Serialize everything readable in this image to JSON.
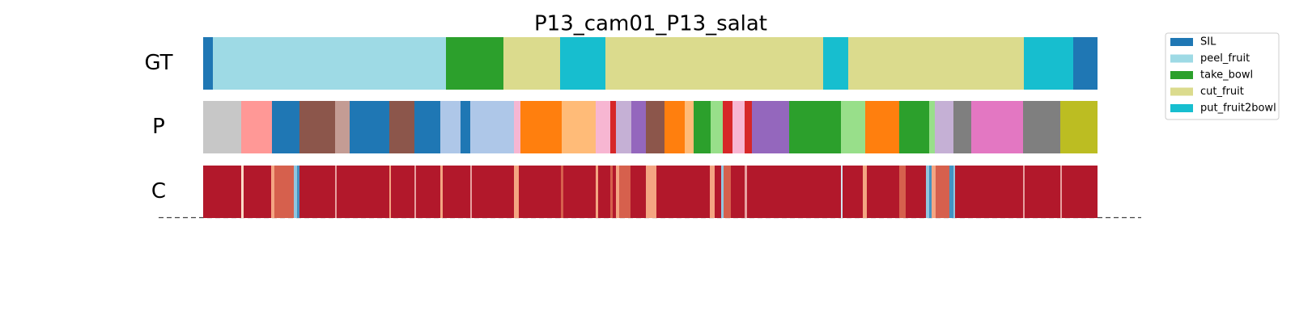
{
  "chart_data": {
    "type": "segments",
    "title": "P13_cam01_P13_salat",
    "xlim": [
      0,
      1105
    ],
    "legend": [
      {
        "name": "SIL",
        "color": "#1f77b4"
      },
      {
        "name": "peel_fruit",
        "color": "#9edae5"
      },
      {
        "name": "take_bowl",
        "color": "#2ca02c"
      },
      {
        "name": "cut_fruit",
        "color": "#dbdb8d"
      },
      {
        "name": "put_fruit2bowl",
        "color": "#17becf"
      }
    ],
    "rows": [
      {
        "label": "GT",
        "segments": [
          [
            0,
            12
          ],
          [
            12,
            300
          ],
          [
            300,
            371
          ],
          [
            371,
            441
          ],
          [
            441,
            497
          ],
          [
            497,
            766
          ],
          [
            766,
            797
          ],
          [
            797,
            1014
          ],
          [
            1014,
            1075
          ],
          [
            1075,
            1105
          ]
        ],
        "classes": [
          0,
          1,
          2,
          3,
          4,
          3,
          4,
          3,
          4,
          0
        ]
      },
      {
        "label": "P",
        "segments": [
          [
            0,
            47
          ],
          [
            47,
            85
          ],
          [
            85,
            119
          ],
          [
            119,
            163
          ],
          [
            163,
            181
          ],
          [
            181,
            230
          ],
          [
            230,
            261
          ],
          [
            261,
            293
          ],
          [
            293,
            318
          ],
          [
            318,
            330
          ],
          [
            330,
            384
          ],
          [
            384,
            392
          ],
          [
            392,
            443
          ],
          [
            443,
            485
          ],
          [
            485,
            503
          ],
          [
            503,
            510
          ],
          [
            510,
            529
          ],
          [
            529,
            547
          ],
          [
            547,
            570
          ],
          [
            570,
            595
          ],
          [
            595,
            606
          ],
          [
            606,
            627
          ],
          [
            627,
            642
          ],
          [
            642,
            654
          ],
          [
            654,
            669
          ],
          [
            669,
            678
          ],
          [
            678,
            724
          ],
          [
            724,
            788
          ],
          [
            788,
            818
          ],
          [
            818,
            860
          ],
          [
            860,
            897
          ],
          [
            897,
            904
          ],
          [
            904,
            927
          ],
          [
            927,
            949
          ],
          [
            949,
            1013
          ],
          [
            1013,
            1059
          ],
          [
            1059,
            1105
          ]
        ],
        "colors": [
          "#c7c7c7",
          "#ff9896",
          "#1f77b4",
          "#8c564b",
          "#c49c94",
          "#1f77b4",
          "#8c564b",
          "#1f77b4",
          "#aec7e8",
          "#1f77b4",
          "#aec7e8",
          "#f7b6d2",
          "#ff7f0e",
          "#ffbb78",
          "#f7b6d2",
          "#d62728",
          "#c5b0d5",
          "#9467bd",
          "#8c564b",
          "#ff7f0e",
          "#ffbb78",
          "#2ca02c",
          "#98df8a",
          "#d62728",
          "#f7b6d2",
          "#d62728",
          "#9467bd",
          "#2ca02c",
          "#98df8a",
          "#ff7f0e",
          "#2ca02c",
          "#98df8a",
          "#c5b0d5",
          "#7f7f7f",
          "#e377c2",
          "#7f7f7f",
          "#bcbd22"
        ]
      },
      {
        "label": "C",
        "segments": [
          [
            0,
            1105
          ],
          [
            47,
            50
          ],
          [
            84,
            88
          ],
          [
            88,
            112
          ],
          [
            112,
            116
          ],
          [
            116,
            119
          ],
          [
            163,
            165
          ],
          [
            230,
            232
          ],
          [
            261,
            263
          ],
          [
            293,
            296
          ],
          [
            330,
            332
          ],
          [
            384,
            390
          ],
          [
            442,
            445
          ],
          [
            485,
            488
          ],
          [
            503,
            506
          ],
          [
            510,
            514
          ],
          [
            514,
            528
          ],
          [
            547,
            560
          ],
          [
            626,
            632
          ],
          [
            640,
            643
          ],
          [
            643,
            652
          ],
          [
            669,
            672
          ],
          [
            788,
            790
          ],
          [
            815,
            820
          ],
          [
            860,
            868
          ],
          [
            893,
            897
          ],
          [
            897,
            900
          ],
          [
            900,
            905
          ],
          [
            905,
            922
          ],
          [
            922,
            927
          ],
          [
            927,
            929
          ],
          [
            1013,
            1015
          ],
          [
            1059,
            1061
          ]
        ],
        "colors": [
          "#b2182b",
          "#fddbc7",
          "#f4a582",
          "#d6604d",
          "#92c5de",
          "#4393c3",
          "#e7a0a0",
          "#f4a582",
          "#e7a0a0",
          "#f4a582",
          "#e7a0a0",
          "#f4a582",
          "#d6604d",
          "#f4a582",
          "#d6604d",
          "#f4a582",
          "#d6604d",
          "#f4a582",
          "#f4a582",
          "#92c5de",
          "#d6604d",
          "#e7a0a0",
          "#d1e5f0",
          "#f4a582",
          "#d6604d",
          "#92c5de",
          "#4393c3",
          "#f4a582",
          "#d6604d",
          "#4393c3",
          "#92c5de",
          "#e7a0a0",
          "#e7a0a0"
        ]
      }
    ]
  }
}
